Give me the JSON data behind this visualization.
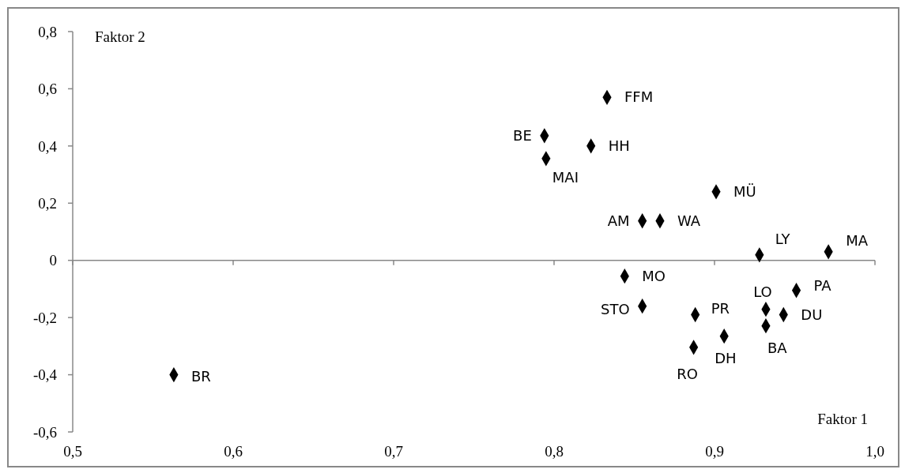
{
  "chart_data": {
    "type": "scatter",
    "xlabel": "Faktor 1",
    "ylabel": "Faktor 2",
    "xlim": [
      0.5,
      1.0
    ],
    "ylim": [
      -0.6,
      0.8
    ],
    "xticks": [
      {
        "value": 0.5,
        "label": "0,5"
      },
      {
        "value": 0.6,
        "label": "0,6"
      },
      {
        "value": 0.7,
        "label": "0,7"
      },
      {
        "value": 0.8,
        "label": "0,8"
      },
      {
        "value": 0.9,
        "label": "0,9"
      },
      {
        "value": 1.0,
        "label": "1,0"
      }
    ],
    "yticks": [
      {
        "value": -0.6,
        "label": "-0,6"
      },
      {
        "value": -0.4,
        "label": "-0,4"
      },
      {
        "value": -0.2,
        "label": "-0,2"
      },
      0,
      {
        "value": 0.2,
        "label": "0,2"
      },
      {
        "value": 0.4,
        "label": "0,4"
      },
      {
        "value": 0.6,
        "label": "0,6"
      },
      {
        "value": 0.8,
        "label": "0,8"
      }
    ],
    "marker": "diamond",
    "series": [
      {
        "name": "FFM",
        "color": "#000000",
        "x": [
          0.833
        ],
        "values": [
          0.57
        ]
      },
      {
        "name": "BE",
        "color": "#000000",
        "x": [
          0.794
        ],
        "values": [
          0.436
        ]
      },
      {
        "name": "HH",
        "color": "#000000",
        "x": [
          0.823
        ],
        "values": [
          0.4
        ]
      },
      {
        "name": "MAI",
        "color": "#000000",
        "x": [
          0.795
        ],
        "values": [
          0.356
        ]
      },
      {
        "name": "MÜ",
        "color": "#000000",
        "x": [
          0.901
        ],
        "values": [
          0.24
        ]
      },
      {
        "name": "AM",
        "color": "#000000",
        "x": [
          0.855
        ],
        "values": [
          0.138
        ]
      },
      {
        "name": "WA",
        "color": "#000000",
        "x": [
          0.866
        ],
        "values": [
          0.138
        ]
      },
      {
        "name": "LY",
        "color": "#000000",
        "x": [
          0.928
        ],
        "values": [
          0.019
        ]
      },
      {
        "name": "MA",
        "color": "#000000",
        "x": [
          0.971
        ],
        "values": [
          0.03
        ]
      },
      {
        "name": "MO",
        "color": "#000000",
        "x": [
          0.844
        ],
        "values": [
          -0.055
        ]
      },
      {
        "name": "STO",
        "color": "#000000",
        "x": [
          0.855
        ],
        "values": [
          -0.16
        ]
      },
      {
        "name": "PR",
        "color": "#000000",
        "x": [
          0.888
        ],
        "values": [
          -0.19
        ]
      },
      {
        "name": "LO",
        "color": "#000000",
        "x": [
          0.932
        ],
        "values": [
          -0.171
        ]
      },
      {
        "name": "PA",
        "color": "#000000",
        "x": [
          0.951
        ],
        "values": [
          -0.105
        ]
      },
      {
        "name": "DU",
        "color": "#000000",
        "x": [
          0.943
        ],
        "values": [
          -0.19
        ]
      },
      {
        "name": "BA",
        "color": "#000000",
        "x": [
          0.932
        ],
        "values": [
          -0.229
        ]
      },
      {
        "name": "DH",
        "color": "#000000",
        "x": [
          0.906
        ],
        "values": [
          -0.265
        ]
      },
      {
        "name": "RO",
        "color": "#000000",
        "x": [
          0.887
        ],
        "values": [
          -0.304
        ]
      },
      {
        "name": "BR",
        "color": "#000000",
        "x": [
          0.563
        ],
        "values": [
          -0.4
        ]
      }
    ]
  }
}
